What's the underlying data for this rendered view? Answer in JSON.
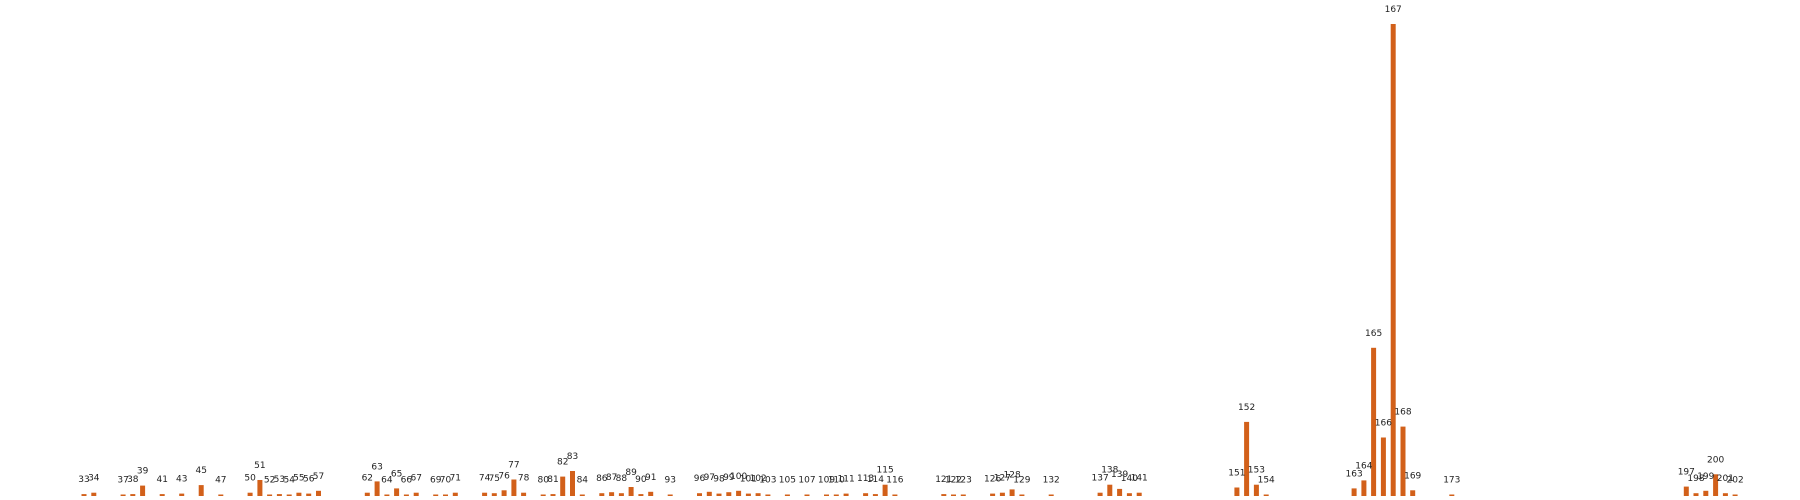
{
  "chart_data": {
    "type": "bar",
    "bar_color": "#d2601a",
    "title": "",
    "xlabel": "",
    "ylabel": "",
    "ylim": [
      0,
      1.0
    ],
    "grid": false,
    "axes_visible": false,
    "categories": [
      33,
      34,
      37,
      38,
      39,
      41,
      43,
      45,
      47,
      50,
      51,
      52,
      53,
      54,
      55,
      56,
      57,
      62,
      63,
      64,
      65,
      66,
      67,
      69,
      70,
      71,
      74,
      75,
      76,
      77,
      78,
      80,
      81,
      82,
      83,
      84,
      86,
      87,
      88,
      89,
      90,
      91,
      93,
      96,
      97,
      98,
      99,
      100,
      101,
      102,
      103,
      105,
      107,
      109,
      110,
      111,
      113,
      114,
      115,
      116,
      121,
      122,
      123,
      126,
      127,
      128,
      129,
      132,
      137,
      138,
      139,
      140,
      141,
      151,
      152,
      153,
      154,
      163,
      164,
      165,
      166,
      168,
      167,
      169,
      173,
      197,
      198,
      199,
      200,
      201,
      202
    ],
    "labels": [
      "33",
      "34",
      "37",
      "38",
      "39",
      "41",
      "43",
      "45",
      "47",
      "50",
      "51",
      "52",
      "53",
      "54",
      "55",
      "56",
      "57",
      "62",
      "63",
      "64",
      "65",
      "66",
      "67",
      "69",
      "70",
      "71",
      "74",
      "75",
      "76",
      "77",
      "78",
      "80",
      "81",
      "82",
      "83",
      "84",
      "86",
      "87",
      "88",
      "89",
      "90",
      "91",
      "93",
      "96",
      "97",
      "98",
      "99",
      "100",
      "101",
      "102",
      "103",
      "105",
      "107",
      "109",
      "110",
      "111",
      "113",
      "114",
      "115",
      "116",
      "121",
      "122",
      "123",
      "126",
      "127",
      "128",
      "129",
      "132",
      "137",
      "138",
      "139",
      "140",
      "141",
      "151",
      "152",
      "153",
      "154",
      "163",
      "164",
      "165",
      "166",
      "168",
      "167",
      "169",
      "173",
      "197",
      "198",
      "199",
      "200",
      "201",
      "202"
    ],
    "values": [
      0.004,
      0.007,
      0.003,
      0.004,
      0.022,
      0.004,
      0.005,
      0.023,
      0.002,
      0.007,
      0.034,
      0.003,
      0.004,
      0.002,
      0.007,
      0.005,
      0.011,
      0.007,
      0.031,
      0.003,
      0.016,
      0.003,
      0.007,
      0.002,
      0.003,
      0.007,
      0.007,
      0.006,
      0.012,
      0.035,
      0.007,
      0.002,
      0.004,
      0.041,
      0.053,
      0.003,
      0.006,
      0.008,
      0.006,
      0.019,
      0.004,
      0.009,
      0.001,
      0.006,
      0.009,
      0.005,
      0.008,
      0.011,
      0.005,
      0.006,
      0.002,
      0.001,
      0.003,
      0.001,
      0.003,
      0.005,
      0.006,
      0.004,
      0.024,
      0.003,
      0.004,
      0.001,
      0.001,
      0.005,
      0.007,
      0.014,
      0.003,
      0.001,
      0.007,
      0.024,
      0.015,
      0.006,
      0.007,
      0.018,
      0.157,
      0.024,
      0.002,
      0.016,
      0.033,
      0.314,
      0.124,
      0.147,
      1.0,
      0.012,
      0.001,
      0.02,
      0.006,
      0.011,
      0.046,
      0.006,
      0.002
    ]
  }
}
